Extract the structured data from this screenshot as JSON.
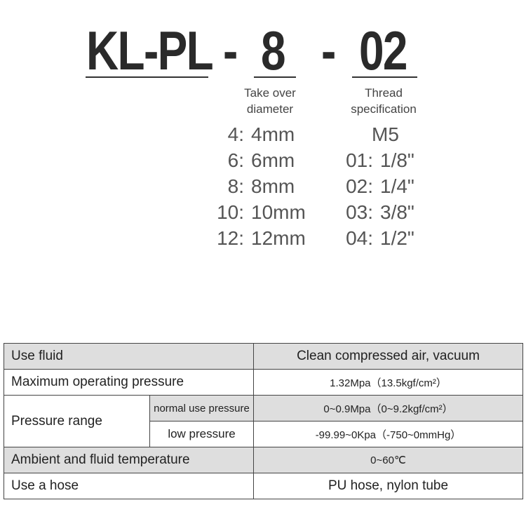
{
  "model": {
    "prefix": "KL-PL",
    "dash1": "-",
    "size": "8",
    "dash2": "-",
    "thread": "02"
  },
  "captions": {
    "size": [
      "Take over",
      "diameter"
    ],
    "thread": [
      "Thread",
      "specification"
    ]
  },
  "diameter_options": [
    {
      "code": "4:",
      "value": "4mm"
    },
    {
      "code": "6:",
      "value": "6mm"
    },
    {
      "code": "8:",
      "value": "8mm"
    },
    {
      "code": "10:",
      "value": "10mm"
    },
    {
      "code": "12:",
      "value": "12mm"
    }
  ],
  "thread_options": [
    {
      "code": "",
      "value": "M5"
    },
    {
      "code": "01:",
      "value": "1/8\""
    },
    {
      "code": "02:",
      "value": "1/4\""
    },
    {
      "code": "03:",
      "value": "3/8\""
    },
    {
      "code": "04:",
      "value": "1/2\""
    }
  ],
  "specs": {
    "use_fluid": {
      "label": "Use fluid",
      "value": "Clean compressed air, vacuum"
    },
    "max_pressure": {
      "label": "Maximum operating pressure",
      "value": "1.32Mpa（13.5kgf/cm²）"
    },
    "pressure_range": {
      "label": "Pressure range",
      "normal": {
        "label": "normal use pressure",
        "value": "0~0.9Mpa（0~9.2kgf/cm²）"
      },
      "low": {
        "label": "low pressure",
        "value": "-99.99~0Kpa（-750~0mmHg）"
      }
    },
    "temperature": {
      "label": "Ambient and fluid temperature",
      "value": "0~60℃"
    },
    "hose": {
      "label": "Use a hose",
      "value": "PU hose, nylon tube"
    }
  },
  "colors": {
    "shaded_row": "#dedede",
    "border": "#444444"
  }
}
